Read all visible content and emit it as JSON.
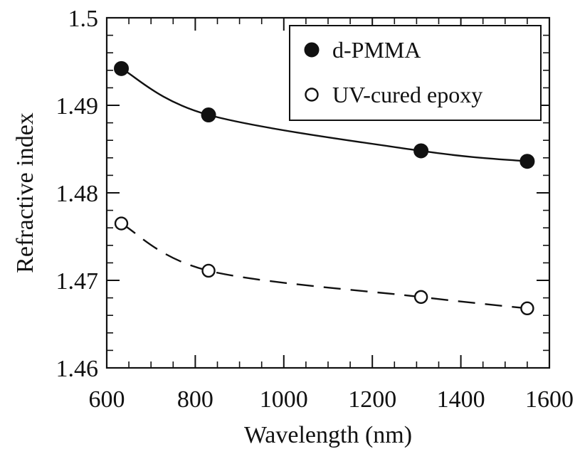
{
  "chart_data": {
    "type": "line",
    "xlabel": "Wavelength (nm)",
    "ylabel": "Refractive index",
    "xlim": [
      600,
      1600
    ],
    "ylim": [
      1.46,
      1.5
    ],
    "x_ticks": [
      600,
      800,
      1000,
      1200,
      1400,
      1600
    ],
    "x_tick_labels": [
      "600",
      "800",
      "1000",
      "1200",
      "1400",
      "1600"
    ],
    "y_ticks": [
      1.46,
      1.47,
      1.48,
      1.49,
      1.5
    ],
    "y_tick_labels": [
      "1.46",
      "1.47",
      "1.48",
      "1.49",
      "1.5"
    ],
    "x_minor_step": 50,
    "y_minor_step": 0.002,
    "grid": false,
    "legend_position": "top-right",
    "series": [
      {
        "name": "d-PMMA",
        "marker": "filled-circle",
        "line_style": "solid",
        "color": "#111111",
        "x": [
          633,
          830,
          1310,
          1550
        ],
        "y": [
          1.4942,
          1.4889,
          1.4848,
          1.4836
        ]
      },
      {
        "name": "UV-cured epoxy",
        "marker": "open-circle",
        "line_style": "dashed",
        "color": "#111111",
        "x": [
          633,
          830,
          1310,
          1550
        ],
        "y": [
          1.4765,
          1.4711,
          1.4681,
          1.4668
        ]
      }
    ]
  }
}
